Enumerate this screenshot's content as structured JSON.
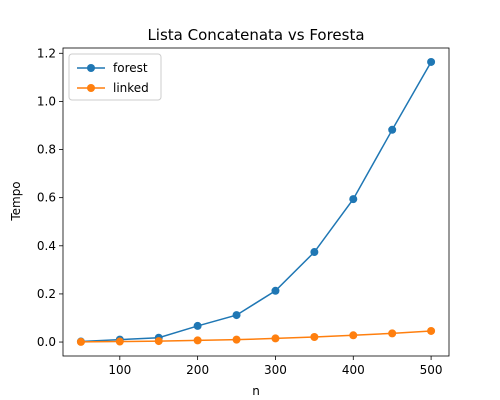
{
  "chart_data": {
    "type": "line",
    "title": "Lista Concatenata vs Foresta",
    "xlabel": "n",
    "ylabel": "Tempo",
    "x": [
      50,
      100,
      150,
      200,
      250,
      300,
      350,
      400,
      450,
      500
    ],
    "xlim": [
      27,
      523
    ],
    "ylim": [
      -0.058,
      1.222
    ],
    "xticks": [
      100,
      200,
      300,
      400,
      500
    ],
    "yticks": [
      0.0,
      0.2,
      0.4,
      0.6,
      0.8,
      1.0,
      1.2
    ],
    "ytick_labels": [
      "0.0",
      "0.2",
      "0.4",
      "0.6",
      "0.8",
      "1.0",
      "1.2"
    ],
    "grid": false,
    "legend_position": "upper left",
    "series": [
      {
        "name": "forest",
        "color": "#1f77b4",
        "marker": "circle",
        "values": [
          0.002,
          0.01,
          0.018,
          0.067,
          0.112,
          0.213,
          0.374,
          0.594,
          0.882,
          1.164
        ]
      },
      {
        "name": "linked",
        "color": "#ff7f0e",
        "marker": "circle",
        "values": [
          0.0005,
          0.002,
          0.004,
          0.007,
          0.01,
          0.015,
          0.021,
          0.028,
          0.036,
          0.046
        ]
      }
    ]
  }
}
